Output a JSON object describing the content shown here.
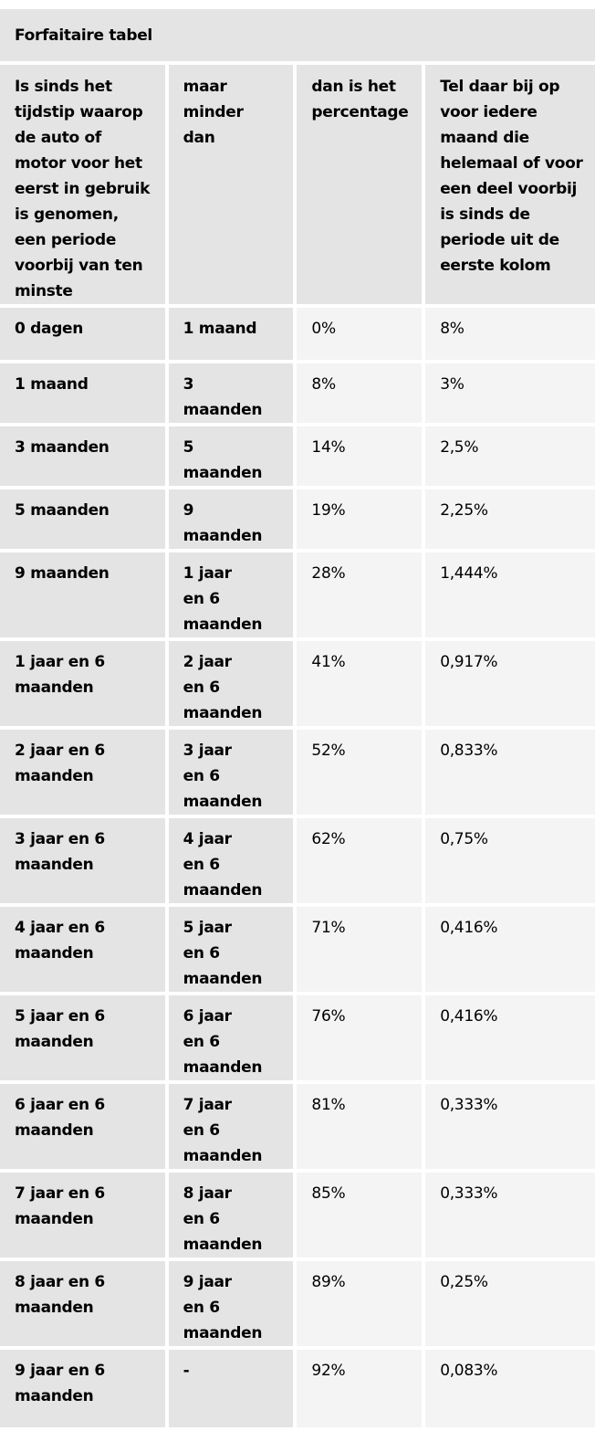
{
  "table": {
    "caption": "Forfaitaire tabel",
    "headers": [
      "Is sinds het tijdstip waarop de auto of motor voor het eerst in gebruik is genomen, een periode voorbij van ten minste",
      "maar minder dan",
      "dan is het percentage",
      "Tel daar bij op voor iedere maand die helemaal of voor een deel voorbij is sinds de periode uit de eerste kolom"
    ],
    "rows": [
      [
        "0 dagen",
        "1 maand",
        "0%",
        "8%"
      ],
      [
        "1 maand",
        "3 maanden",
        "8%",
        "3%"
      ],
      [
        "3 maanden",
        "5 maanden",
        "14%",
        "2,5%"
      ],
      [
        "5 maanden",
        "9 maanden",
        "19%",
        "2,25%"
      ],
      [
        "9 maanden",
        "1 jaar en 6 maanden",
        "28%",
        "1,444%"
      ],
      [
        "1 jaar en 6 maanden",
        "2 jaar en 6 maanden",
        "41%",
        "0,917%"
      ],
      [
        "2 jaar en 6 maanden",
        "3 jaar en 6 maanden",
        "52%",
        "0,833%"
      ],
      [
        "3 jaar en 6 maanden",
        "4 jaar en 6 maanden",
        "62%",
        "0,75%"
      ],
      [
        "4 jaar en 6 maanden",
        "5 jaar en 6 maanden",
        "71%",
        "0,416%"
      ],
      [
        "5 jaar en 6 maanden",
        "6 jaar en 6 maanden",
        "76%",
        "0,416%"
      ],
      [
        "6 jaar en 6 maanden",
        "7 jaar en 6 maanden",
        "81%",
        "0,333%"
      ],
      [
        "7 jaar en 6 maanden",
        "8 jaar en 6 maanden",
        "85%",
        "0,333%"
      ],
      [
        "8 jaar en 6 maanden",
        "9 jaar en 6 maanden",
        "89%",
        "0,25%"
      ],
      [
        "9 jaar en 6 maanden",
        "-",
        "92%",
        "0,083%"
      ]
    ]
  },
  "colors": {
    "header_bg": "#e4e4e4",
    "value_bg": "#f4f4f4"
  }
}
